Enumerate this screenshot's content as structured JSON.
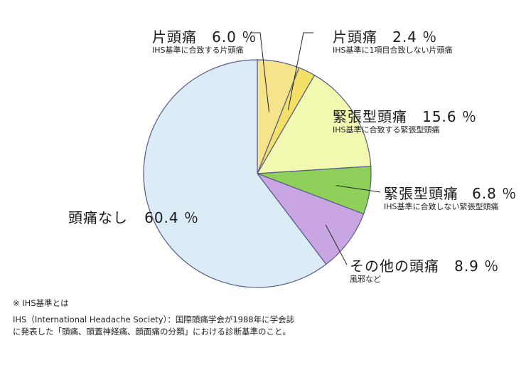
{
  "chart_data": {
    "type": "pie",
    "slices": [
      {
        "label": "頭痛なし",
        "value": 60.4,
        "value_text": "60.4 ％",
        "sublabel": "",
        "color": "#dcecf6"
      },
      {
        "label": "片頭痛",
        "value": 6.0,
        "value_text": "6.0 ％",
        "sublabel": "IHS基準に合致する片頭痛",
        "color": "#f6e48a"
      },
      {
        "label": "片頭痛",
        "value": 2.4,
        "value_text": "2.4 ％",
        "sublabel": "IHS基準に1項目合致しない片頭痛",
        "color": "#f3e066"
      },
      {
        "label": "緊張型頭痛",
        "value": 15.6,
        "value_text": "15.6 ％",
        "sublabel": "IHS基準に合致する緊張型頭痛",
        "color": "#f2f8b0"
      },
      {
        "label": "緊張型頭痛",
        "value": 6.8,
        "value_text": "6.8 ％",
        "sublabel": "IHS基準に合致しない緊張型頭痛",
        "color": "#8fd05a"
      },
      {
        "label": "その他の頭痛",
        "value": 8.9,
        "value_text": "8.9 ％",
        "sublabel": "風邪など",
        "color": "#c9a6e2"
      }
    ],
    "start": "12 o'clock",
    "direction": "clockwise",
    "legend": "none"
  },
  "notes": {
    "heading": "※ IHS基準とは",
    "line1": "IHS（International Headache Society）：国際頭痛学会が1988年に学会誌",
    "line2": "に発表した「頭痛、頭蓋神経痛、顔面痛の分類」における診断基準のこと。"
  }
}
